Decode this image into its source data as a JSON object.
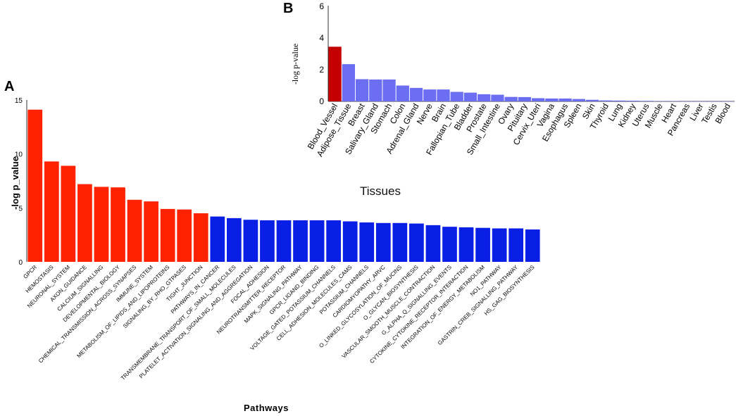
{
  "chart_data": [
    {
      "panel": "A",
      "type": "bar",
      "title": "",
      "xlabel": "Pathways",
      "ylabel": "-log p_value",
      "ylim": [
        0,
        15
      ],
      "yticks": [
        0,
        5,
        10,
        15
      ],
      "colors": {
        "highlight": "#ff2200",
        "other": "#0a1fe6"
      },
      "categories": [
        "GPCR",
        "HEMOSTASIS",
        "NEURONAL_SYSTEM",
        "AXON_GUIDANCE",
        "CALCIUM_SIGNALLING",
        "DEVELOPMENTAL_BIOLOGY",
        "CHEMICAL_TRANSMISSION_ACROSS_SYNAPSES",
        "IMMUNE_SYSTEM",
        "METABOLISM_OF_LIPIDS_AND_LIPOPROTEINS",
        "SIGNALING_BY_RHO_GTPASES",
        "TIGHT_JUNCTION",
        "PATHWAYS_IN_CANCER",
        "TRANSMEMBRANE_TRANSPORT_OF_SMALL_MOLECULES",
        "PLATELET_ACTIVATION_SIGNALING_AND_AGGREGATION",
        "FOCAL_ADHESION",
        "NEUROTRANSMITTER_RECEPTOR",
        "MAPK_SIGNALING_PATHWAY",
        "GPCR_LIGAND_BINDING",
        "VOLTAGE_GATED_POTASSIUM_CHANNELS",
        "CELL_ADHESION_MOLECULES_CAMS",
        "POTASSIUM_CHANNELS",
        "CARDIOMYOPATHY_ARVC",
        "O_LINKED_GLYCOSYLATION_OF_MUCINS",
        "O_GLYCAN_BIOSYNTHESIS",
        "VASCULAR_SMOOTH_MUSCLE_CONTRACTION",
        "G_ALPHA_Q_SIGNALLING_EVENTS",
        "CYTOKINE_CYTOKINE_RECEPTOR_INTERACTION",
        "INTEGRATION_OF_ENERGY_METABOLISM",
        "NO1_PATHWAY",
        "GASTRIN_CREB_SIGNALLING_PATHWAY",
        "HS_GAG_BIOSYNTHESIS"
      ],
      "values": [
        14.1,
        9.3,
        8.9,
        7.2,
        6.95,
        6.9,
        5.75,
        5.6,
        4.9,
        4.85,
        4.5,
        4.2,
        4.05,
        3.9,
        3.85,
        3.85,
        3.85,
        3.85,
        3.85,
        3.75,
        3.65,
        3.6,
        3.6,
        3.55,
        3.4,
        3.25,
        3.2,
        3.15,
        3.1,
        3.1,
        3.0
      ],
      "highlighted_count": 11
    },
    {
      "panel": "B",
      "type": "bar",
      "title": "",
      "xlabel": "Tissues",
      "ylabel": "-log p-value",
      "ylim": [
        0,
        6
      ],
      "yticks": [
        0,
        2,
        4,
        6
      ],
      "colors": {
        "highlight": "#c40000",
        "other": "#6b6ef0"
      },
      "categories": [
        "Blood_Vessel",
        "Adipose_Tissue",
        "Breast",
        "Salivary_Gland",
        "Stomach",
        "Colon",
        "Adrenal_Gland",
        "Nerve",
        "Brain",
        "Fallopian_Tube",
        "Bladder",
        "Prostate",
        "Small_Intestine",
        "Ovary",
        "Pituitary",
        "Cervix_Uteri",
        "Vagina",
        "Esophagus",
        "Spleen",
        "Skin",
        "Thyroid",
        "Lung",
        "Kidney",
        "Uterus",
        "Muscle",
        "Heart",
        "Pancreas",
        "Liver",
        "Testis",
        "Blood"
      ],
      "values": [
        3.45,
        2.35,
        1.4,
        1.38,
        1.38,
        1.0,
        0.85,
        0.75,
        0.75,
        0.6,
        0.55,
        0.45,
        0.42,
        0.28,
        0.27,
        0.2,
        0.18,
        0.18,
        0.15,
        0.1,
        0.06,
        0.05,
        0.04,
        0.03,
        0.02,
        0.02,
        0.01,
        0.01,
        0.01,
        0.01
      ],
      "highlighted_count": 1
    }
  ],
  "panels": {
    "a_letter": "A",
    "b_letter": "B"
  }
}
